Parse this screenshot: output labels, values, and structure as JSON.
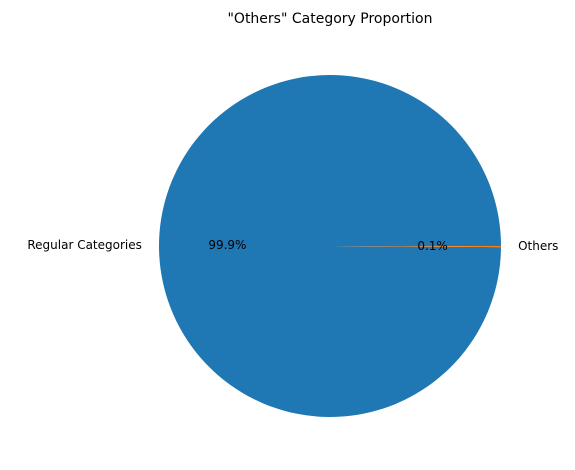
{
  "chart_data": {
    "type": "pie",
    "title": "\"Others\" Category Proportion",
    "slices": [
      {
        "label": "Regular Categories",
        "value": 99.9,
        "pct_label": "99.9%",
        "color": "#1f77b4"
      },
      {
        "label": "Others",
        "value": 0.1,
        "pct_label": "0.1%",
        "color": "#ff7f0e"
      }
    ],
    "start_angle_deg": 0,
    "direction": "counterclockwise"
  }
}
